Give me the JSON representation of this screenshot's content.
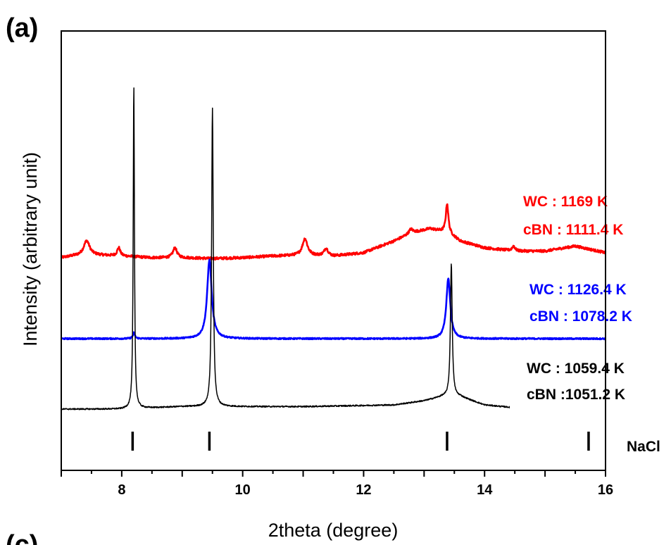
{
  "panel_label": "(a)",
  "next_panel_label": "(c)",
  "chart_data": {
    "type": "line",
    "xlabel": "2theta (degree)",
    "ylabel": "Intensity (arbitrary unit)",
    "xlim": [
      7,
      16
    ],
    "x_ticks": [
      8,
      10,
      12,
      14,
      16
    ],
    "x_tick_labels": [
      "8",
      "10",
      "12",
      "14",
      "16"
    ],
    "y_ticks_shown": false,
    "grid": false,
    "legend": "none",
    "series": [
      {
        "color": "#ff0000",
        "offset": 2.0,
        "baseline": [
          [
            7.0,
            0.0
          ],
          [
            7.2,
            0.02
          ],
          [
            7.6,
            0.03
          ],
          [
            8.0,
            0.02
          ],
          [
            8.5,
            0.0
          ],
          [
            9.0,
            0.0
          ],
          [
            9.5,
            -0.01
          ],
          [
            10.0,
            0.0
          ],
          [
            10.5,
            0.02
          ],
          [
            11.0,
            0.03
          ],
          [
            11.5,
            0.02
          ],
          [
            12.0,
            0.06
          ],
          [
            12.5,
            0.2
          ],
          [
            12.8,
            0.3
          ],
          [
            13.1,
            0.35
          ],
          [
            13.4,
            0.3
          ],
          [
            13.6,
            0.2
          ],
          [
            14.0,
            0.12
          ],
          [
            14.5,
            0.08
          ],
          [
            15.0,
            0.08
          ],
          [
            15.5,
            0.14
          ],
          [
            16.0,
            0.06
          ]
        ],
        "peaks": [
          [
            7.42,
            0.18,
            0.06
          ],
          [
            7.95,
            0.1,
            0.03
          ],
          [
            8.88,
            0.12,
            0.04
          ],
          [
            11.03,
            0.2,
            0.05
          ],
          [
            11.38,
            0.09,
            0.04
          ],
          [
            12.78,
            0.05,
            0.04
          ],
          [
            13.38,
            0.35,
            0.025
          ],
          [
            14.48,
            0.06,
            0.03
          ]
        ],
        "noise": 0.015
      },
      {
        "color": "#0000ff",
        "offset": 1.0,
        "baseline": [
          [
            7.0,
            0.0
          ],
          [
            9.0,
            0.0
          ],
          [
            13.0,
            0.0
          ],
          [
            16.0,
            0.0
          ]
        ],
        "peaks": [
          [
            8.2,
            0.07,
            0.02
          ],
          [
            9.45,
            0.95,
            0.045
          ],
          [
            13.4,
            0.72,
            0.04
          ]
        ],
        "noise": 0.008
      },
      {
        "color": "#000000",
        "offset": 0.0,
        "xmax": 14.45,
        "baseline": [
          [
            7.0,
            0.0
          ],
          [
            8.0,
            0.0
          ],
          [
            9.0,
            0.03
          ],
          [
            11.0,
            0.03
          ],
          [
            12.5,
            0.05
          ],
          [
            13.0,
            0.1
          ],
          [
            13.3,
            0.15
          ],
          [
            13.6,
            0.15
          ],
          [
            14.0,
            0.05
          ],
          [
            14.45,
            0.02
          ]
        ],
        "peaks": [
          [
            8.2,
            3.9,
            0.012
          ],
          [
            9.5,
            3.6,
            0.016
          ],
          [
            13.45,
            1.6,
            0.018
          ]
        ],
        "noise": 0.008
      }
    ],
    "annotations": [
      {
        "lines": [
          "WC : 1169 K",
          "cBN : 1111.4 K"
        ],
        "color": "#ff0000"
      },
      {
        "lines": [
          "WC : 1126.4 K",
          "cBN : 1078.2 K"
        ],
        "color": "#0000ff"
      },
      {
        "lines": [
          "WC : 1059.4 K",
          "cBN :1051.2 K"
        ],
        "color": "#000000"
      }
    ],
    "reference": {
      "label": "NaCl",
      "positions": [
        8.18,
        9.45,
        13.38,
        15.72
      ]
    }
  }
}
